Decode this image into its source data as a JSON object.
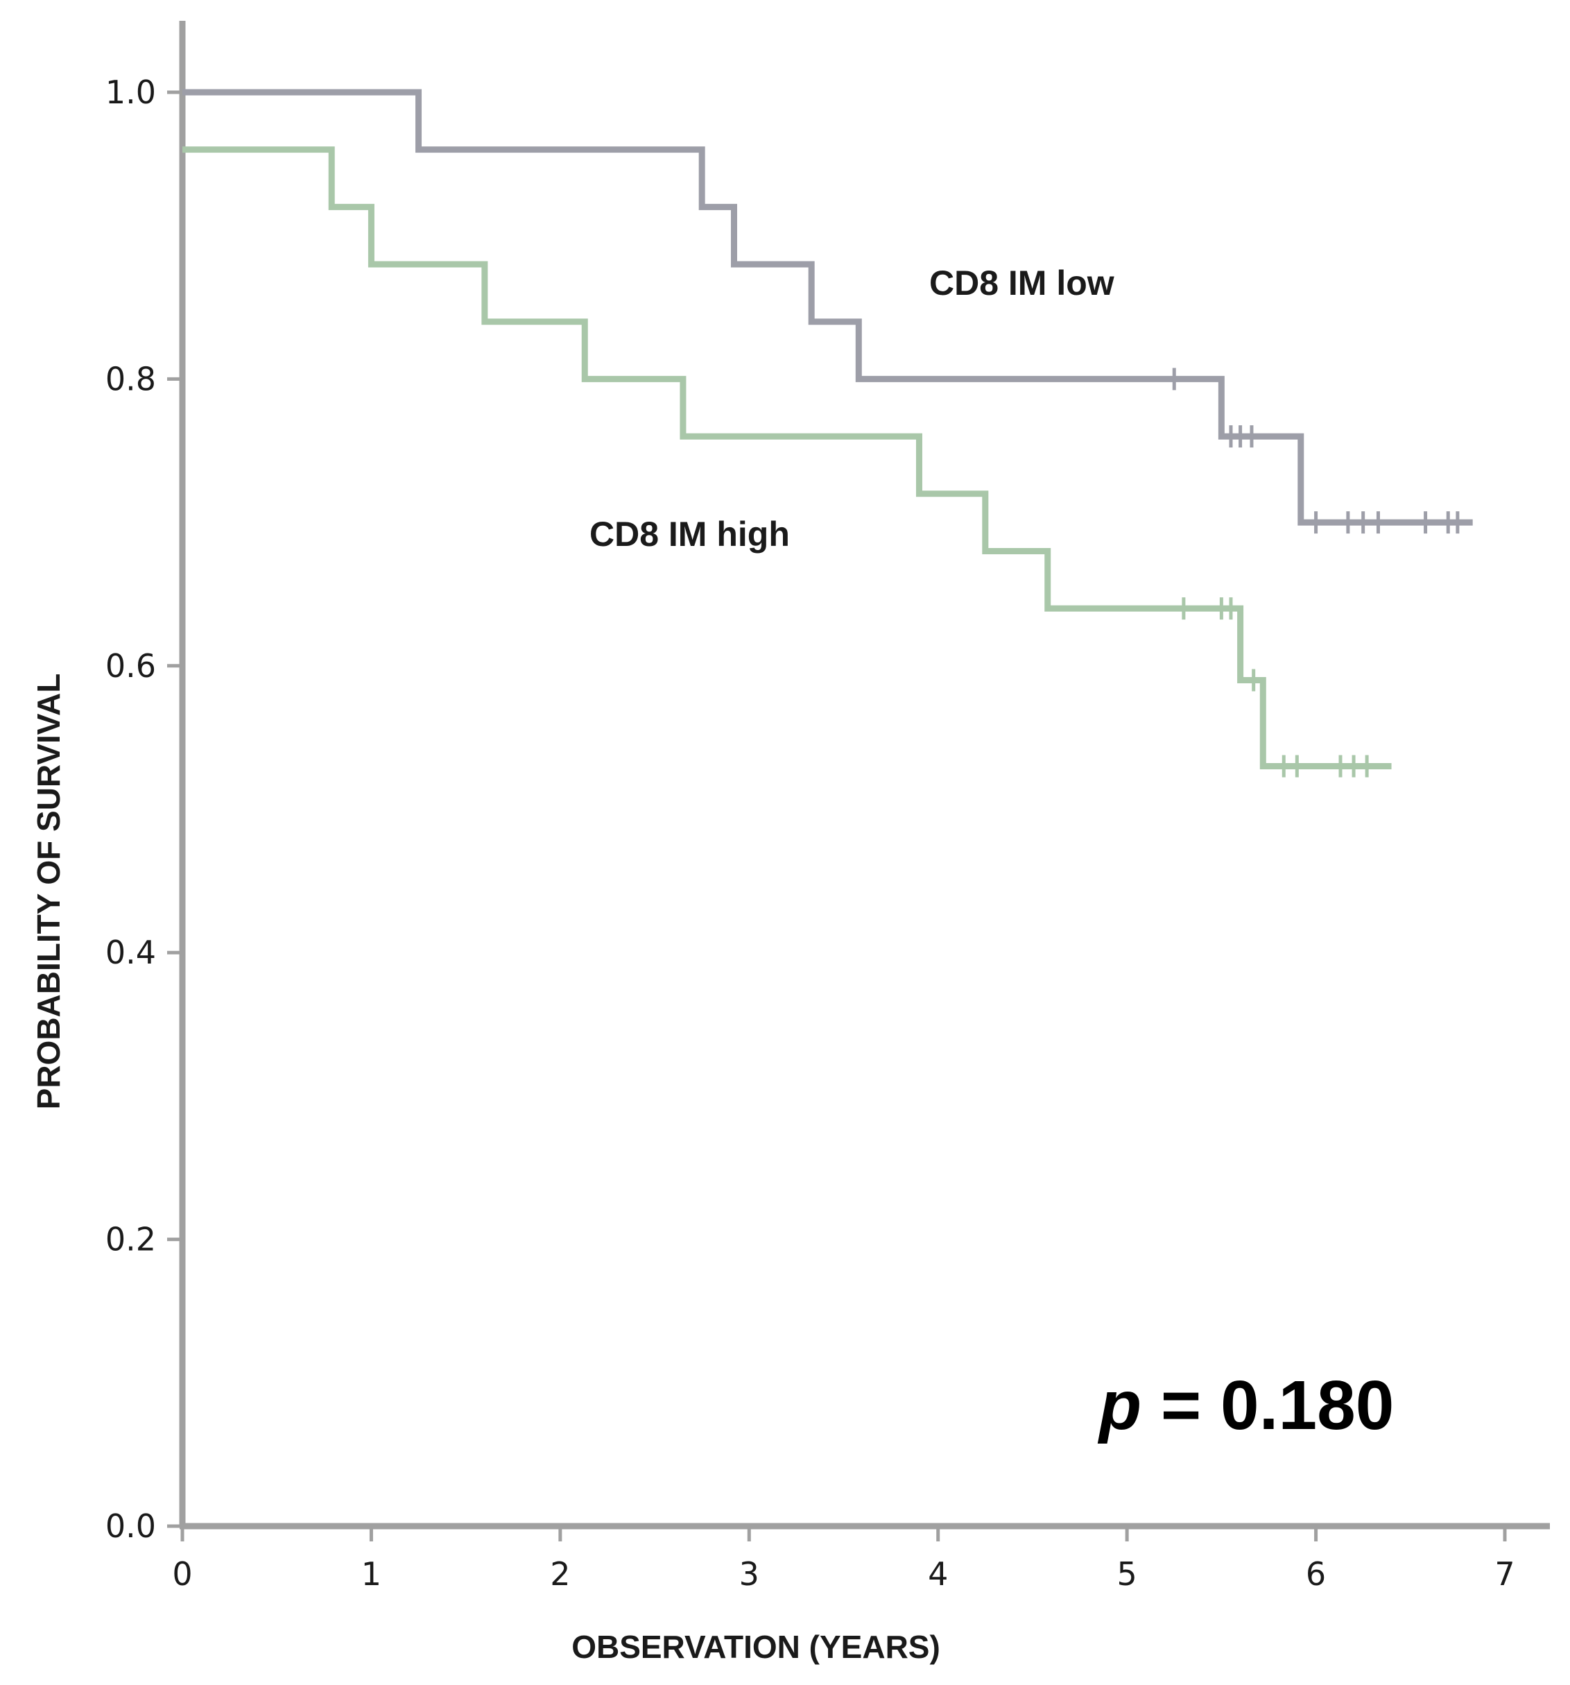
{
  "chart_data": {
    "type": "line",
    "title": "",
    "xlabel": "OBSERVATION (YEARS)",
    "ylabel": "PROBABILITY OF SURVIVAL",
    "xlim": [
      0,
      7
    ],
    "ylim": [
      0,
      1.0
    ],
    "x_ticks": [
      "0",
      "1",
      "2",
      "3",
      "4",
      "5",
      "6",
      "7"
    ],
    "y_ticks": [
      "0.0",
      "0.2",
      "0.4",
      "0.6",
      "0.8",
      "1.0"
    ],
    "grid": false,
    "annotation": {
      "italic_part": "p",
      "rest": " = 0.180"
    },
    "series": [
      {
        "name": "CD8 IM low",
        "color": "#9d9ea8",
        "steps": [
          [
            0,
            1.0
          ],
          [
            1.25,
            0.96
          ],
          [
            2.75,
            0.92
          ],
          [
            2.92,
            0.88
          ],
          [
            3.33,
            0.84
          ],
          [
            3.58,
            0.8
          ],
          [
            5.5,
            0.76
          ],
          [
            5.92,
            0.7
          ]
        ],
        "end_x": 6.83,
        "censored": [
          [
            5.25,
            0.8
          ],
          [
            5.55,
            0.76
          ],
          [
            5.6,
            0.76
          ],
          [
            5.66,
            0.76
          ],
          [
            6.0,
            0.7
          ],
          [
            6.17,
            0.7
          ],
          [
            6.25,
            0.7
          ],
          [
            6.33,
            0.7
          ],
          [
            6.58,
            0.7
          ],
          [
            6.7,
            0.7
          ],
          [
            6.75,
            0.7
          ]
        ]
      },
      {
        "name": "CD8 IM high",
        "color": "#a9c7a9",
        "steps": [
          [
            0,
            0.96
          ],
          [
            0.79,
            0.92
          ],
          [
            1.0,
            0.88
          ],
          [
            1.6,
            0.84
          ],
          [
            2.13,
            0.8
          ],
          [
            2.65,
            0.76
          ],
          [
            3.9,
            0.72
          ],
          [
            4.25,
            0.68
          ],
          [
            4.58,
            0.64
          ],
          [
            5.6,
            0.59
          ],
          [
            5.72,
            0.53
          ]
        ],
        "end_x": 6.4,
        "censored": [
          [
            5.3,
            0.64
          ],
          [
            5.5,
            0.64
          ],
          [
            5.55,
            0.64
          ],
          [
            5.67,
            0.59
          ],
          [
            5.83,
            0.53
          ],
          [
            5.9,
            0.53
          ],
          [
            6.13,
            0.53
          ],
          [
            6.2,
            0.53
          ],
          [
            6.27,
            0.53
          ]
        ]
      }
    ]
  }
}
